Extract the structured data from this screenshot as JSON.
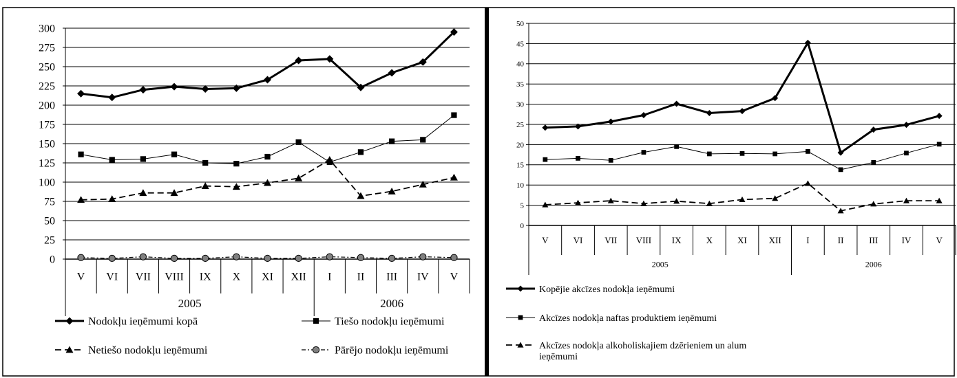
{
  "chart_data": [
    {
      "type": "line",
      "title": "",
      "xlabel": "",
      "ylabel": "",
      "ylim": [
        0,
        300
      ],
      "yticks": [
        "0",
        "25",
        "50",
        "75",
        "100",
        "125",
        "150",
        "175",
        "200",
        "225",
        "250",
        "275",
        "300"
      ],
      "categories": [
        "V",
        "VI",
        "VII",
        "VIII",
        "IX",
        "X",
        "XI",
        "XII",
        "I",
        "II",
        "III",
        "IV",
        "V"
      ],
      "year_groups": [
        {
          "label": "2005",
          "span": [
            0,
            7
          ]
        },
        {
          "label": "2006",
          "span": [
            8,
            12
          ]
        }
      ],
      "grid": "horizontal",
      "legend_position": "bottom",
      "series": [
        {
          "name": "Nodokļu ieņēmumi kopā",
          "marker": "diamond",
          "line": "solid-thick",
          "color": "#000000",
          "values": [
            215,
            210,
            220,
            224,
            221,
            222,
            233,
            258,
            260,
            223,
            242,
            256,
            295
          ]
        },
        {
          "name": "Tiešo nodokļu ieņēmumi",
          "marker": "square",
          "line": "solid-thin",
          "color": "#000000",
          "values": [
            136,
            129,
            130,
            136,
            125,
            124,
            133,
            152,
            126,
            139,
            153,
            155,
            187
          ]
        },
        {
          "name": "Netiešo nodokļu ieņēmumi",
          "marker": "triangle",
          "line": "dashed",
          "color": "#000000",
          "values": [
            77,
            78,
            86,
            86,
            95,
            94,
            99,
            105,
            129,
            82,
            88,
            97,
            106
          ]
        },
        {
          "name": "Pārējo nodokļu ieņēmumi",
          "marker": "circle",
          "line": "dash-dot",
          "color": "#000000",
          "values": [
            2,
            1,
            3,
            1,
            1,
            3,
            1,
            1,
            3,
            2,
            1,
            3,
            2
          ]
        }
      ]
    },
    {
      "type": "line",
      "title": "",
      "xlabel": "",
      "ylabel": "",
      "ylim": [
        0,
        50
      ],
      "yticks": [
        "0",
        "5",
        "10",
        "15",
        "20",
        "25",
        "30",
        "35",
        "40",
        "45",
        "50"
      ],
      "categories": [
        "V",
        "VI",
        "VII",
        "VIII",
        "IX",
        "X",
        "XI",
        "XII",
        "I",
        "II",
        "III",
        "IV",
        "V"
      ],
      "year_groups": [
        {
          "label": "2005",
          "span": [
            0,
            7
          ]
        },
        {
          "label": "2006",
          "span": [
            8,
            12
          ]
        }
      ],
      "grid": "horizontal",
      "legend_position": "bottom",
      "series": [
        {
          "name": "Kopējie akcīzes nodokļa ieņēmumi",
          "marker": "diamond",
          "line": "solid-thick",
          "color": "#000000",
          "values": [
            24.2,
            24.5,
            25.7,
            27.3,
            30.1,
            27.8,
            28.3,
            31.5,
            45.2,
            18.0,
            23.7,
            24.9,
            27.1
          ]
        },
        {
          "name": "Akcīzes nodokļa naftas produktiem ieņēmumi",
          "marker": "square",
          "line": "solid-thin",
          "color": "#000000",
          "values": [
            16.3,
            16.6,
            16.1,
            18.1,
            19.5,
            17.7,
            17.8,
            17.7,
            18.3,
            13.8,
            15.6,
            17.9,
            20.1
          ]
        },
        {
          "name": "Akcīzes nodokļa alkoholiskajiem dzērieniem un alum ieņēmumi",
          "marker": "triangle",
          "line": "dashed",
          "color": "#000000",
          "values": [
            5.1,
            5.6,
            6.1,
            5.4,
            6.0,
            5.4,
            6.4,
            6.7,
            10.4,
            3.6,
            5.3,
            6.1,
            6.1
          ]
        }
      ]
    }
  ]
}
